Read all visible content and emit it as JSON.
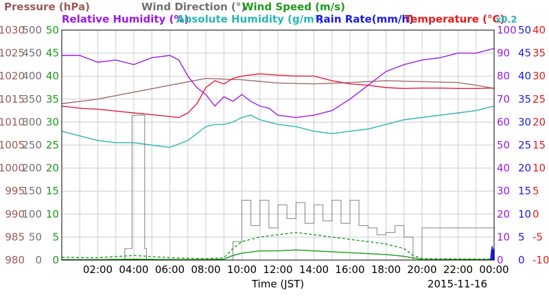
{
  "chart_data": {
    "type": "line",
    "date": "2015-11-16",
    "xlabel": "Time (JST)",
    "x_ticks": [
      "02:00",
      "04:00",
      "06:00",
      "08:00",
      "10:00",
      "12:00",
      "14:00",
      "16:00",
      "18:00",
      "20:00",
      "22:00",
      "00:00"
    ],
    "x_range_hours": [
      0,
      24
    ],
    "grid": true,
    "titles": {
      "pressure": "Pressure (hPa)",
      "wind_direction": "Wind Direction (°)",
      "wind_speed": "Wind Speed (m/s)",
      "rel_humidity": "Relative Humidity (%)",
      "abs_humidity": "Absolute Humidity (g/m³)",
      "rain_rate": "Rain Rate(mm/h)",
      "temperature": "Temperature (°C)",
      "rain_scale": "x0.2"
    },
    "axes": {
      "pressure": {
        "min": 980,
        "max": 1030,
        "ticks": [
          "980",
          "985",
          "990",
          "995",
          "1000",
          "1005",
          "1010",
          "1015",
          "1020",
          "1025",
          "1030"
        ],
        "color": "#9a5a5a"
      },
      "wind_direction": {
        "min": 0,
        "max": 500,
        "ticks": [
          "0",
          "50",
          "100",
          "150",
          "200",
          "250",
          "300",
          "350",
          "400",
          "450",
          "500"
        ],
        "color": "#707070"
      },
      "wind_speed": {
        "min": 0,
        "max": 50,
        "ticks": [
          "0",
          "5",
          "10",
          "15",
          "20",
          "25",
          "30",
          "35",
          "40",
          "45",
          "50"
        ],
        "color": "#1a9a1a"
      },
      "rel_humidity": {
        "min": 0,
        "max": 100,
        "ticks": [
          "0",
          "10",
          "20",
          "30",
          "40",
          "50",
          "60",
          "70",
          "80",
          "90",
          "100"
        ],
        "color": "#9a1ae6"
      },
      "rain_rate": {
        "min": 0,
        "max": 50,
        "ticks": [
          "0",
          "5",
          "10",
          "15",
          "20",
          "25",
          "30",
          "35",
          "40",
          "45",
          "50"
        ],
        "color": "#1a1ae6"
      },
      "temperature": {
        "min": -10,
        "max": 40,
        "ticks": [
          "-10",
          "-5",
          "0",
          "5",
          "10",
          "15",
          "20",
          "25",
          "30",
          "35",
          "40"
        ],
        "color": "#e61a1a"
      }
    },
    "series": [
      {
        "name": "Pressure (hPa)",
        "axis": "pressure",
        "color": "#a06a6a",
        "x": [
          0,
          2,
          4,
          6,
          8,
          10,
          12,
          14,
          16,
          18,
          20,
          22,
          23,
          24
        ],
        "y": [
          1014,
          1015,
          1016.5,
          1018,
          1019.5,
          1019.2,
          1018.5,
          1018.3,
          1018.6,
          1019,
          1018.8,
          1018.6,
          1018,
          1017.3
        ]
      },
      {
        "name": "Relative Humidity (%)",
        "axis": "rel_humidity",
        "color": "#9a1ae6",
        "x": [
          0,
          1,
          2,
          3,
          4,
          5,
          6,
          6.5,
          7,
          7.5,
          8,
          8.5,
          9,
          9.5,
          10,
          10.5,
          11,
          11.5,
          12,
          13,
          14,
          15,
          16,
          17,
          18,
          19,
          20,
          21,
          22,
          23,
          24
        ],
        "y": [
          89,
          89,
          86,
          87,
          85,
          88,
          89,
          87,
          80,
          75,
          72,
          67,
          71,
          69,
          72,
          69,
          67,
          66,
          63,
          62,
          63,
          65,
          70,
          76,
          82,
          85,
          87,
          88,
          90,
          90,
          92
        ]
      },
      {
        "name": "Absolute Humidity (g/m³)",
        "axis": "rel_humidity",
        "color": "#2ab5b5",
        "x": [
          0,
          1,
          2,
          3,
          4,
          5,
          6,
          7,
          8,
          8.5,
          9,
          9.5,
          10,
          10.5,
          11,
          11.5,
          12,
          13,
          14,
          15,
          16,
          17,
          18,
          19,
          20,
          21,
          22,
          23,
          24
        ],
        "y": [
          56,
          54,
          52,
          51,
          51,
          50,
          49,
          52,
          58,
          59,
          59,
          60,
          62,
          63,
          61,
          60,
          59,
          58,
          56,
          55,
          56,
          57,
          59,
          61,
          62,
          63,
          64,
          65,
          67
        ]
      },
      {
        "name": "Temperature (°C)",
        "axis": "temperature",
        "color": "#e61a3a",
        "x": [
          0,
          1,
          2,
          3,
          4,
          5,
          6,
          6.5,
          7,
          7.5,
          8,
          8.5,
          9,
          9.5,
          10,
          11,
          12,
          13,
          14,
          15,
          16,
          17,
          18,
          19,
          20,
          21,
          22,
          23,
          24
        ],
        "y": [
          23.5,
          23,
          22.8,
          22.4,
          22,
          21.6,
          21.2,
          21,
          22,
          24,
          27.5,
          29,
          28.3,
          29.5,
          30,
          30.5,
          30.2,
          30,
          30,
          29,
          28.3,
          28,
          27.5,
          27.3,
          27.4,
          27.4,
          27.3,
          27.3,
          27.4
        ]
      },
      {
        "name": "Wind Direction (°)",
        "axis": "wind_direction",
        "color": "#808080",
        "step": true,
        "x": [
          0,
          3.5,
          3.9,
          4.0,
          4.6,
          4.7,
          9.2,
          9.5,
          10,
          10.5,
          11,
          11.5,
          12,
          12.5,
          13,
          13.5,
          14,
          14.5,
          15,
          15.5,
          16,
          16.5,
          17,
          17.5,
          18,
          18.5,
          19,
          19.5,
          20,
          24
        ],
        "y": [
          0,
          25,
          315,
          315,
          25,
          0,
          0,
          40,
          130,
          75,
          130,
          70,
          120,
          90,
          125,
          80,
          120,
          85,
          130,
          80,
          130,
          75,
          70,
          55,
          60,
          75,
          50,
          0,
          70,
          70
        ]
      },
      {
        "name": "Wind Speed (m/s)",
        "axis": "wind_speed",
        "color": "#1a9a1a",
        "dashed": true,
        "x": [
          0,
          2,
          4,
          6,
          8,
          9,
          9.5,
          10,
          11,
          12,
          13,
          14,
          15,
          16,
          17,
          18,
          19,
          19.5,
          20,
          24
        ],
        "y": [
          0.6,
          0.5,
          1,
          0.5,
          0.3,
          0.5,
          2.5,
          4,
          5,
          5.5,
          6,
          5.5,
          5,
          4.5,
          4,
          3.5,
          2.5,
          1,
          0.3,
          0.2
        ]
      },
      {
        "name": "Wind Speed (m/s)",
        "axis": "wind_speed",
        "color": "#1a9a1a",
        "x": [
          0,
          2,
          4,
          6,
          8,
          9,
          9.5,
          10,
          11,
          12,
          13,
          14,
          15,
          16,
          17,
          18,
          19,
          20,
          24
        ],
        "y": [
          0.1,
          0.1,
          0.2,
          0.1,
          0.1,
          0.2,
          1,
          1.5,
          2,
          2,
          2.2,
          2,
          1.8,
          1.6,
          1.4,
          1.2,
          0.8,
          0.1,
          0.1
        ]
      },
      {
        "name": "Rain Rate(mm/h)",
        "axis": "rain_rate",
        "color": "#1a1ae6",
        "x": [
          23.8,
          23.85,
          23.9,
          23.95,
          24
        ],
        "y": [
          0,
          2,
          3,
          1.5,
          2.5
        ]
      }
    ]
  }
}
